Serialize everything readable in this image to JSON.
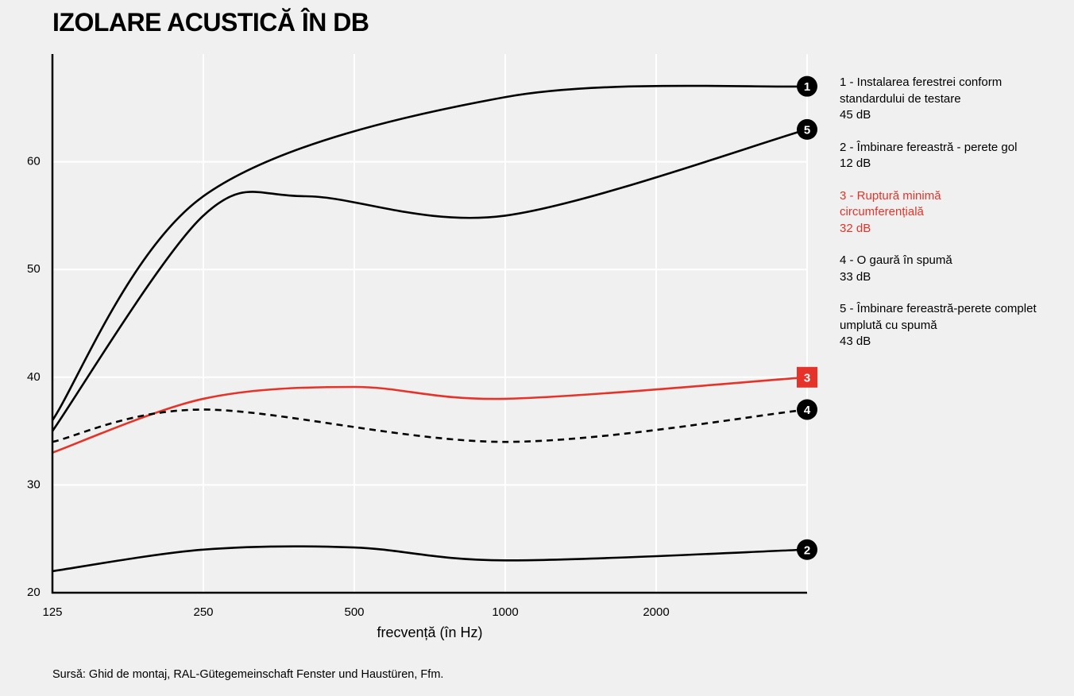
{
  "title": "IZOLARE ACUSTICĂ ÎN DB",
  "source": "Sursă: Ghid de montaj, RAL-Gütegemeinschaft Fenster und Haustüren, Ffm.",
  "chart_data": {
    "type": "line",
    "xlabel": "frecvență (în Hz)",
    "ylabel": "",
    "x": [
      125,
      250,
      500,
      1000,
      2000,
      4000
    ],
    "x_tick_labels": [
      "125",
      "250",
      "500",
      "1000",
      "2000"
    ],
    "x_scale": "log2",
    "xlim": [
      125,
      4000
    ],
    "y_ticks": [
      20,
      30,
      40,
      50,
      60
    ],
    "ylim": [
      20,
      70
    ],
    "grid": "vertical and horizontal, white",
    "series": [
      {
        "id": "1",
        "marker": "1",
        "color": "#000000",
        "dash": false,
        "marker_shape": "circle",
        "points": [
          [
            125,
            36
          ],
          [
            250,
            56.8
          ],
          [
            1000,
            66
          ],
          [
            4000,
            67
          ]
        ]
      },
      {
        "id": "5",
        "marker": "5",
        "color": "#000000",
        "dash": false,
        "marker_shape": "circle",
        "points": [
          [
            125,
            35
          ],
          [
            250,
            55
          ],
          [
            400,
            56.8
          ],
          [
            1000,
            55
          ],
          [
            4000,
            63
          ]
        ]
      },
      {
        "id": "3",
        "marker": "3",
        "color": "#e63329",
        "dash": false,
        "marker_shape": "square",
        "points": [
          [
            125,
            33
          ],
          [
            250,
            38
          ],
          [
            500,
            39.1
          ],
          [
            1000,
            38
          ],
          [
            4000,
            40
          ]
        ]
      },
      {
        "id": "4",
        "marker": "4",
        "color": "#000000",
        "dash": true,
        "marker_shape": "circle",
        "points": [
          [
            125,
            34
          ],
          [
            250,
            37
          ],
          [
            1000,
            34
          ],
          [
            4000,
            37
          ]
        ]
      },
      {
        "id": "2",
        "marker": "2",
        "color": "#000000",
        "dash": false,
        "marker_shape": "circle",
        "points": [
          [
            125,
            22
          ],
          [
            250,
            24
          ],
          [
            500,
            24.2
          ],
          [
            1000,
            23
          ],
          [
            4000,
            24
          ]
        ]
      }
    ]
  },
  "legend": [
    {
      "lines": [
        "1 - Instalarea ferestrei conform",
        "standardului de testare",
        "45 dB"
      ],
      "color": "#000000"
    },
    {
      "lines": [
        "2 - Îmbinare fereastră - perete gol",
        "12 dB"
      ],
      "color": "#000000"
    },
    {
      "lines": [
        "3 - Ruptură minimă",
        "circumferențială",
        "32 dB"
      ],
      "color": "#e63329"
    },
    {
      "lines": [
        "4 - O gaură în spumă",
        "33 dB"
      ],
      "color": "#000000"
    },
    {
      "lines": [
        "5 - Îmbinare fereastră-perete complet",
        "umplută cu spumă",
        "43 dB"
      ],
      "color": "#000000"
    }
  ]
}
